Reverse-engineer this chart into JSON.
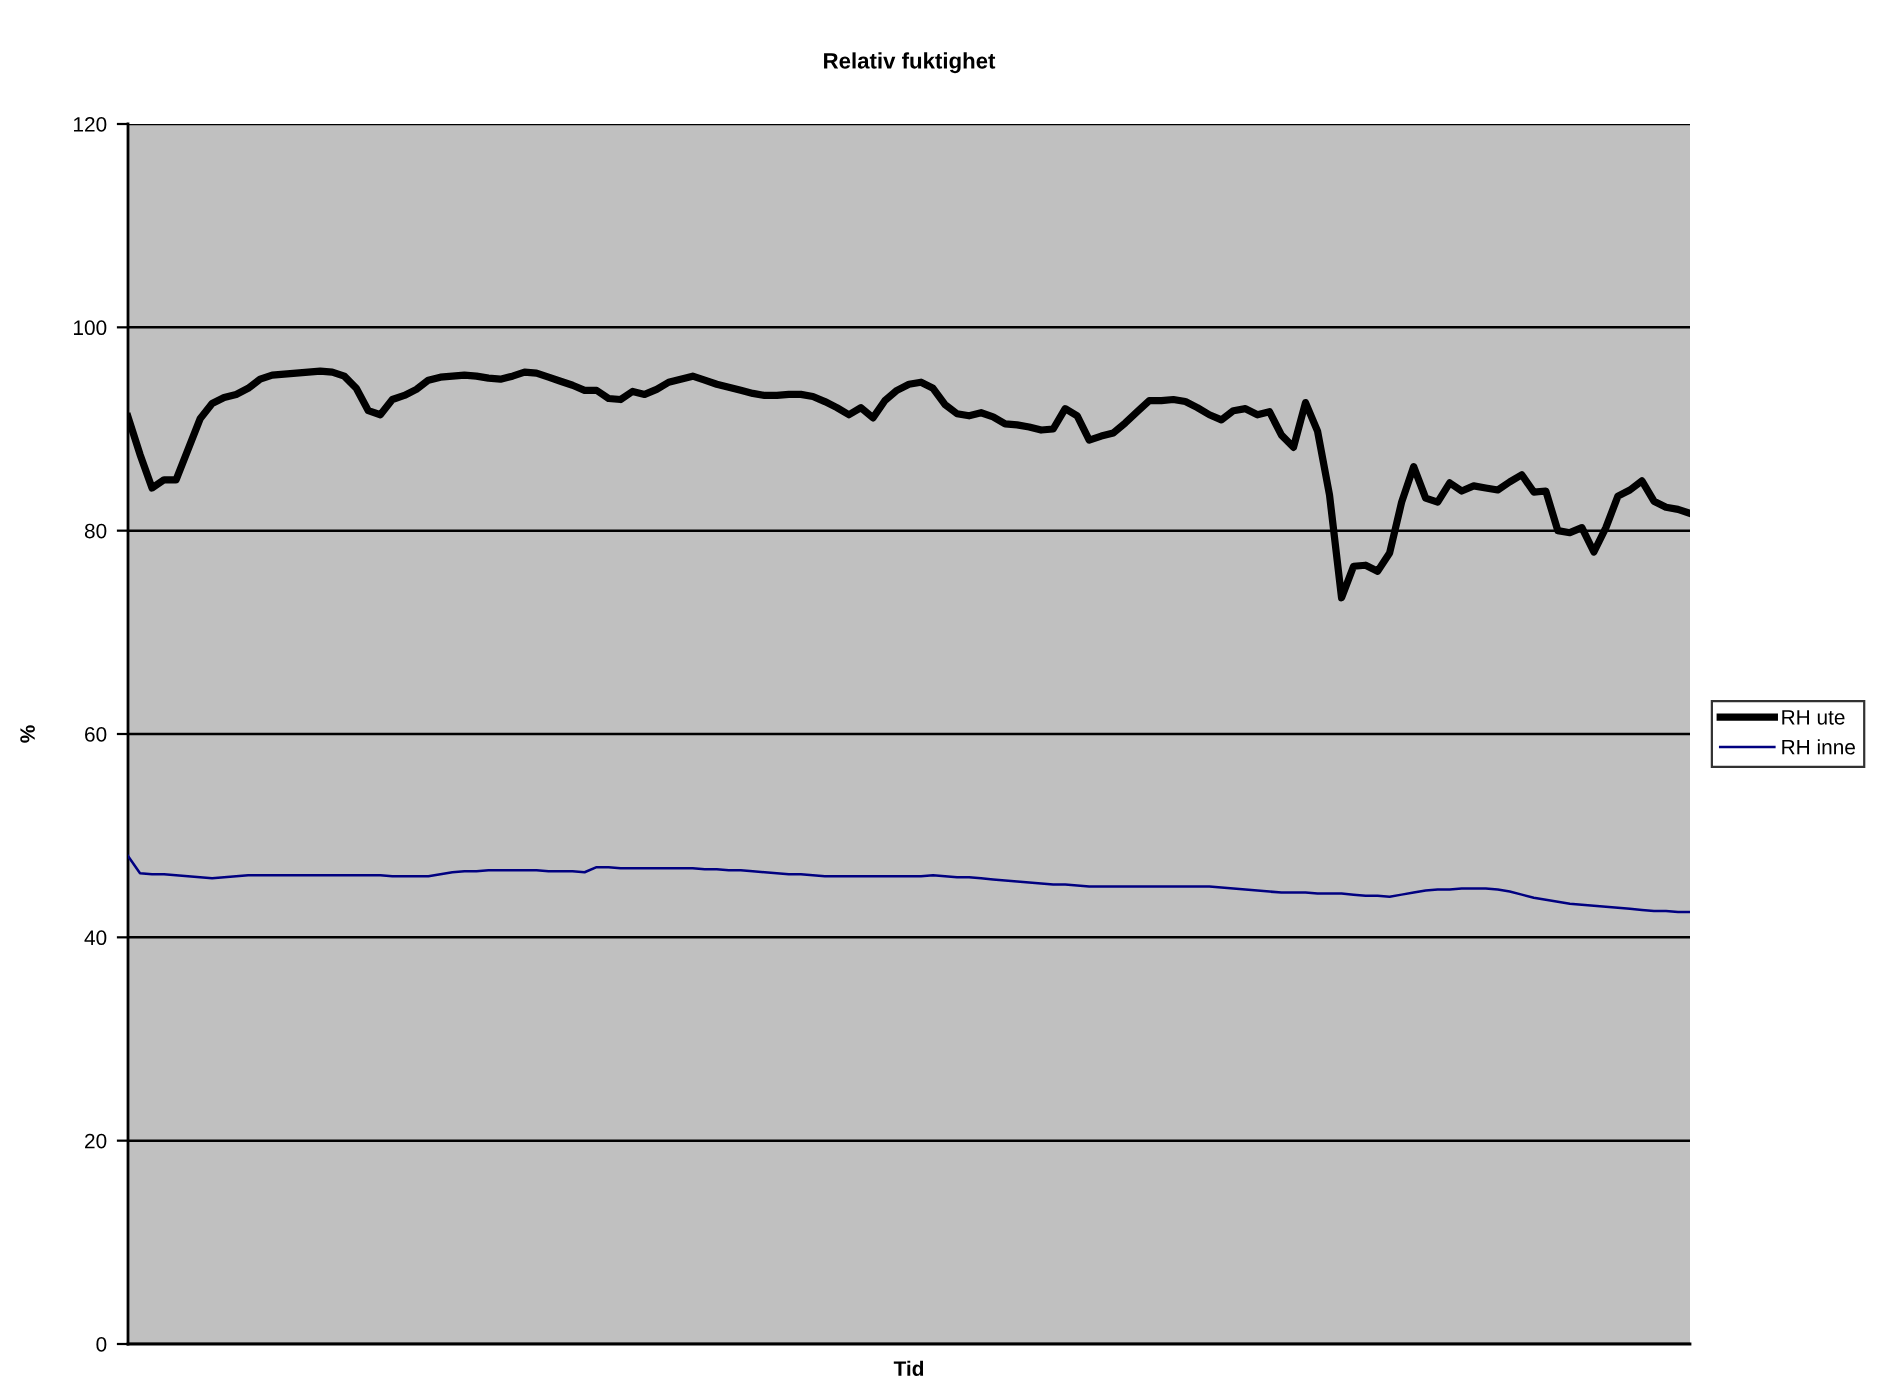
{
  "chart_data": {
    "type": "line",
    "title": "Relativ fuktighet",
    "xlabel": "Tid",
    "ylabel": "%",
    "categories": [
      null,
      null,
      null,
      null,
      null,
      null,
      null,
      null,
      null,
      null,
      null,
      null,
      null,
      null,
      null,
      null,
      null,
      null,
      null,
      null,
      null,
      null,
      null,
      null,
      null,
      null,
      null,
      null,
      null,
      null,
      null,
      null,
      null,
      null,
      null,
      null,
      null,
      null,
      null,
      null,
      null,
      null,
      null,
      null,
      null,
      null,
      null,
      null,
      null,
      null,
      null,
      null,
      null,
      null,
      null,
      null,
      null,
      null,
      null,
      null,
      null,
      null,
      null,
      null,
      null,
      null,
      null,
      null,
      null,
      null,
      null,
      null,
      null,
      null,
      null,
      null,
      null,
      null,
      null,
      null,
      null,
      null,
      null,
      null,
      null,
      null,
      null,
      null,
      null,
      null,
      null,
      null,
      null,
      null,
      null,
      null,
      null,
      null,
      null,
      null,
      null,
      null,
      null,
      null,
      null,
      null,
      null,
      null,
      null,
      null,
      null,
      null,
      null,
      null,
      null,
      null,
      null,
      null,
      null,
      null,
      null,
      null,
      null,
      null,
      null,
      null,
      null,
      null,
      null,
      null,
      null
    ],
    "series": [
      {
        "name": "RH ute",
        "color": "#000000",
        "values": [
          91.2,
          87.5,
          84.2,
          85.0,
          85.0,
          88.0,
          91.0,
          92.5,
          93.1,
          93.4,
          94.0,
          94.9,
          95.3,
          95.4,
          95.5,
          95.6,
          95.7,
          95.6,
          95.2,
          94.0,
          91.8,
          91.4,
          92.9,
          93.3,
          93.9,
          94.8,
          95.1,
          95.2,
          95.3,
          95.2,
          95.0,
          94.9,
          95.2,
          95.6,
          95.5,
          95.1,
          94.7,
          94.3,
          93.8,
          93.8,
          93.0,
          92.9,
          93.7,
          93.4,
          93.9,
          94.6,
          94.9,
          95.2,
          94.8,
          94.4,
          94.1,
          93.8,
          93.5,
          93.3,
          93.3,
          93.4,
          93.4,
          93.2,
          92.7,
          92.1,
          91.4,
          92.1,
          91.1,
          92.8,
          93.8,
          94.4,
          94.6,
          94.0,
          92.4,
          91.5,
          91.3,
          91.6,
          91.2,
          90.5,
          90.4,
          90.2,
          89.9,
          90.0,
          92.0,
          91.3,
          88.9,
          89.3,
          89.6,
          90.6,
          91.7,
          92.8,
          92.8,
          92.9,
          92.7,
          92.1,
          91.4,
          90.9,
          91.8,
          92.0,
          91.4,
          91.7,
          89.4,
          88.2,
          92.6,
          89.8,
          83.5,
          73.4,
          76.5,
          76.6,
          76.0,
          77.8,
          82.8,
          86.3,
          83.2,
          82.8,
          84.7,
          83.9,
          84.4,
          84.2,
          84.0,
          84.8,
          85.5,
          83.8,
          83.9,
          80.0,
          79.8,
          80.3,
          77.9,
          80.3,
          83.4,
          84.0,
          84.9,
          82.9,
          82.3,
          82.1,
          81.7
        ]
      },
      {
        "name": "RH inne",
        "color": "#000080",
        "values": [
          48.0,
          46.3,
          46.2,
          46.2,
          46.1,
          46.0,
          45.9,
          45.8,
          45.9,
          46.0,
          46.1,
          46.1,
          46.1,
          46.1,
          46.1,
          46.1,
          46.1,
          46.1,
          46.1,
          46.1,
          46.1,
          46.1,
          46.0,
          46.0,
          46.0,
          46.0,
          46.2,
          46.4,
          46.5,
          46.5,
          46.6,
          46.6,
          46.6,
          46.6,
          46.6,
          46.5,
          46.5,
          46.5,
          46.4,
          46.9,
          46.9,
          46.8,
          46.8,
          46.8,
          46.8,
          46.8,
          46.8,
          46.8,
          46.7,
          46.7,
          46.6,
          46.6,
          46.5,
          46.4,
          46.3,
          46.2,
          46.2,
          46.1,
          46.0,
          46.0,
          46.0,
          46.0,
          46.0,
          46.0,
          46.0,
          46.0,
          46.0,
          46.1,
          46.0,
          45.9,
          45.9,
          45.8,
          45.7,
          45.6,
          45.5,
          45.4,
          45.3,
          45.2,
          45.2,
          45.1,
          45.0,
          45.0,
          45.0,
          45.0,
          45.0,
          45.0,
          45.0,
          45.0,
          45.0,
          45.0,
          45.0,
          44.9,
          44.8,
          44.7,
          44.6,
          44.5,
          44.4,
          44.4,
          44.4,
          44.3,
          44.3,
          44.3,
          44.2,
          44.1,
          44.1,
          44.0,
          44.2,
          44.4,
          44.6,
          44.7,
          44.7,
          44.8,
          44.8,
          44.8,
          44.7,
          44.5,
          44.2,
          43.9,
          43.7,
          43.5,
          43.3,
          43.2,
          43.1,
          43.0,
          42.9,
          42.8,
          42.7,
          42.6,
          42.6,
          42.5,
          42.5
        ]
      }
    ],
    "ylim": [
      0,
      120
    ],
    "yticks": [
      0,
      20,
      40,
      60,
      80,
      100,
      120
    ],
    "grid": "y",
    "legend": "right",
    "tick_labels": "y",
    "line_style": "solid"
  }
}
